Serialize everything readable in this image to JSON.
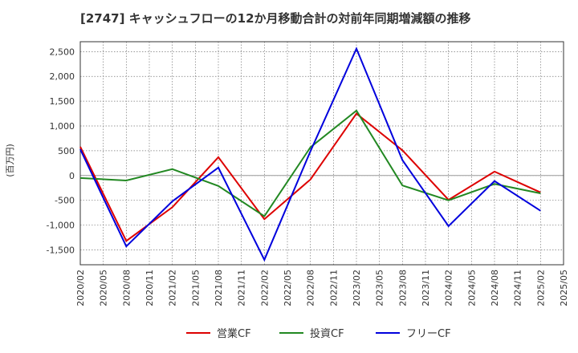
{
  "chart_data": {
    "type": "line",
    "title": "[2747]  キャッシュフローの12か月移動合計の対前年同期増減額の推移",
    "ylabel": "(百万円)",
    "xlabel": "",
    "x": [
      "2020/02",
      "2020/05",
      "2020/08",
      "2020/11",
      "2021/02",
      "2021/05",
      "2021/08",
      "2021/11",
      "2022/02",
      "2022/05",
      "2022/08",
      "2022/11",
      "2023/02",
      "2023/05",
      "2023/08",
      "2023/11",
      "2024/02",
      "2024/05",
      "2024/08",
      "2024/11",
      "2025/02",
      "2025/05"
    ],
    "ylim": [
      -1800,
      2700
    ],
    "yticks": [
      -1500,
      -1000,
      -500,
      0,
      500,
      1000,
      1500,
      2000,
      2500
    ],
    "ytick_labels": [
      "-1,500",
      "-1,000",
      "-500",
      "0",
      "500",
      "1,000",
      "1,500",
      "2,000",
      "2,500"
    ],
    "grid": true,
    "legend_position": "bottom",
    "series": [
      {
        "name": "営業CF",
        "color": "#dd0000",
        "points": [
          [
            "2020/02",
            580
          ],
          [
            "2020/08",
            -1320
          ],
          [
            "2021/02",
            -640
          ],
          [
            "2021/08",
            370
          ],
          [
            "2022/02",
            -880
          ],
          [
            "2022/08",
            -80
          ],
          [
            "2023/02",
            1250
          ],
          [
            "2023/08",
            510
          ],
          [
            "2024/02",
            -490
          ],
          [
            "2024/08",
            80
          ],
          [
            "2025/02",
            -340
          ]
        ]
      },
      {
        "name": "投資CF",
        "color": "#228822",
        "points": [
          [
            "2020/02",
            -50
          ],
          [
            "2020/08",
            -100
          ],
          [
            "2021/02",
            130
          ],
          [
            "2021/08",
            -210
          ],
          [
            "2022/02",
            -820
          ],
          [
            "2022/08",
            570
          ],
          [
            "2023/02",
            1310
          ],
          [
            "2023/08",
            -200
          ],
          [
            "2024/02",
            -500
          ],
          [
            "2024/08",
            -170
          ],
          [
            "2025/02",
            -360
          ]
        ]
      },
      {
        "name": "フリーCF",
        "color": "#0000dd",
        "points": [
          [
            "2020/02",
            530
          ],
          [
            "2020/08",
            -1430
          ],
          [
            "2021/02",
            -520
          ],
          [
            "2021/08",
            160
          ],
          [
            "2022/02",
            -1700
          ],
          [
            "2022/08",
            490
          ],
          [
            "2023/02",
            2560
          ],
          [
            "2023/08",
            310
          ],
          [
            "2024/02",
            -1020
          ],
          [
            "2024/08",
            -110
          ],
          [
            "2025/02",
            -710
          ]
        ]
      }
    ]
  }
}
